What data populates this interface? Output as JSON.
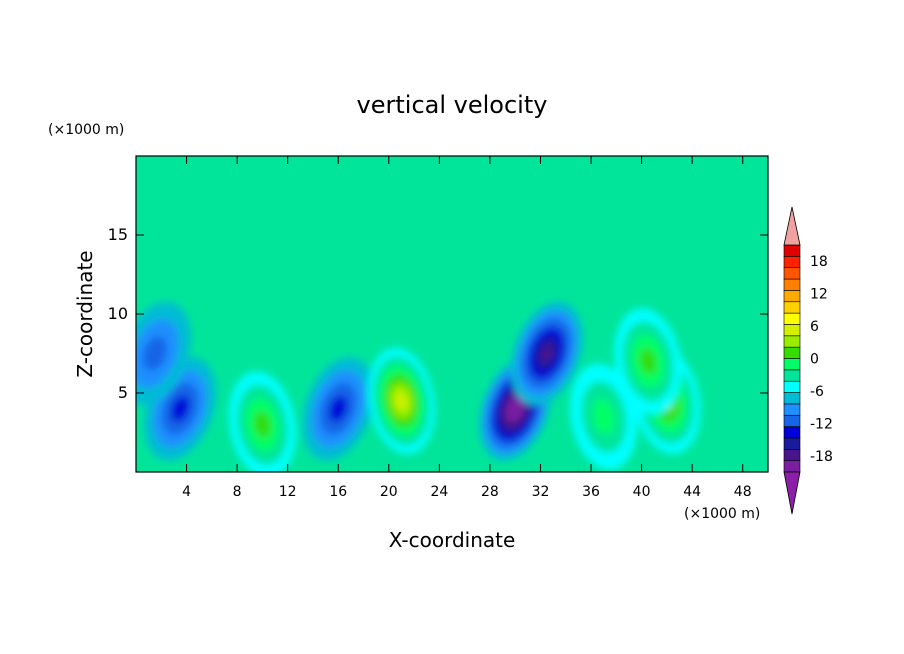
{
  "chart_data": {
    "type": "heatmap",
    "title": "vertical velocity",
    "xlabel": "X-coordinate",
    "ylabel": "Z-coordinate",
    "x_unit": "(×1000 m)",
    "y_unit": "(×1000 m)",
    "xlim": [
      0,
      50
    ],
    "ylim": [
      0,
      20
    ],
    "x_ticks": [
      4,
      8,
      12,
      16,
      20,
      24,
      28,
      32,
      36,
      40,
      44,
      48
    ],
    "y_ticks": [
      5,
      10,
      15
    ],
    "grid": false,
    "colorbar": {
      "min": -21,
      "max": 21,
      "step": 3,
      "extend": "both",
      "labels": [
        "18",
        "12",
        "6",
        "0",
        "-6",
        "-12",
        "-18"
      ],
      "label_values": [
        18,
        12,
        6,
        0,
        -6,
        -12,
        -18
      ],
      "colors": [
        "#7b1fa2",
        "#4a148c",
        "#1a1a9e",
        "#0000d8",
        "#1565e6",
        "#1e90ff",
        "#00bcd4",
        "#00ffff",
        "#00e59a",
        "#00ff66",
        "#33dd00",
        "#99ee00",
        "#d4f000",
        "#ffff00",
        "#ffd000",
        "#ffaa00",
        "#ff8000",
        "#ff5500",
        "#ff2200",
        "#e00000"
      ],
      "under_color": "#8b1fa8",
      "over_color": "#f2a1a1"
    },
    "features": [
      {
        "x": 3.5,
        "z": 4.0,
        "value": -9
      },
      {
        "x": 10.0,
        "z": 3.0,
        "value": 9
      },
      {
        "x": 16.0,
        "z": 4.0,
        "value": -10
      },
      {
        "x": 21.0,
        "z": 4.5,
        "value": 14
      },
      {
        "x": 30.0,
        "z": 4.0,
        "value": -20
      },
      {
        "x": 32.5,
        "z": 7.5,
        "value": -14
      },
      {
        "x": 37.0,
        "z": 3.5,
        "value": 7
      },
      {
        "x": 42.0,
        "z": 4.5,
        "value": 13
      },
      {
        "x": 40.5,
        "z": 7.0,
        "value": 8
      },
      {
        "x": 1.5,
        "z": 7.5,
        "value": -6
      }
    ]
  }
}
